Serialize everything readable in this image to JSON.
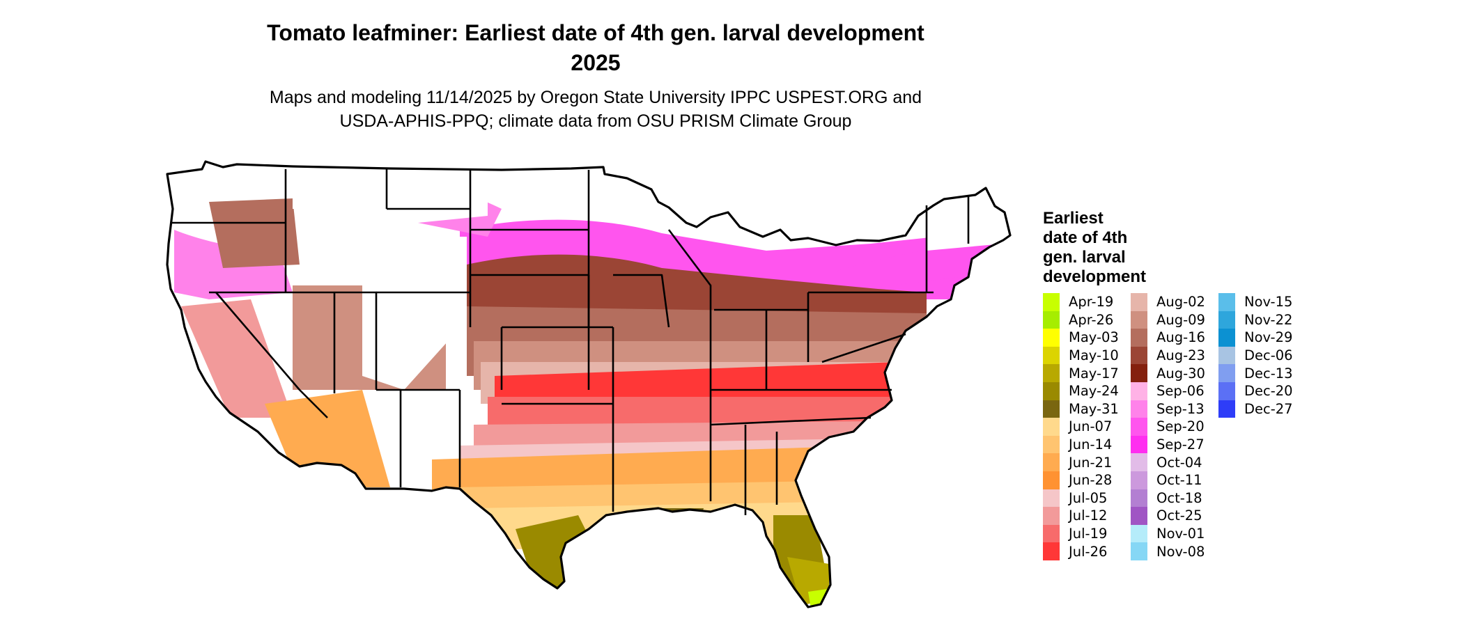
{
  "title": {
    "line1": "Tomato leafminer: Earliest date of 4th gen. larval development",
    "line2": "2025"
  },
  "subtitle": {
    "line1": "Maps and modeling 11/14/2025 by Oregon State University IPPC USPEST.ORG and",
    "line2": "USDA-APHIS-PPQ; climate data from OSU PRISM Climate Group"
  },
  "legend": {
    "title_lines": [
      "Earliest",
      "date of 4th",
      "gen. larval",
      "development"
    ],
    "columns": [
      [
        {
          "label": "Apr-19",
          "color": "#c8ff00"
        },
        {
          "label": "Apr-26",
          "color": "#a6ed00"
        },
        {
          "label": "May-03",
          "color": "#ffff00"
        },
        {
          "label": "May-10",
          "color": "#dcd400"
        },
        {
          "label": "May-17",
          "color": "#b8a900"
        },
        {
          "label": "May-24",
          "color": "#9a8a00"
        },
        {
          "label": "May-31",
          "color": "#7a6610"
        },
        {
          "label": "Jun-07",
          "color": "#ffd98c"
        },
        {
          "label": "Jun-14",
          "color": "#ffc470"
        },
        {
          "label": "Jun-21",
          "color": "#ffab50"
        },
        {
          "label": "Jun-28",
          "color": "#ff9232"
        },
        {
          "label": "Jul-05",
          "color": "#f5c6c8"
        },
        {
          "label": "Jul-12",
          "color": "#f29a9a"
        },
        {
          "label": "Jul-19",
          "color": "#f76b6b"
        },
        {
          "label": "Jul-26",
          "color": "#ff3737"
        }
      ],
      [
        {
          "label": "Aug-02",
          "color": "#e6b5aa"
        },
        {
          "label": "Aug-09",
          "color": "#cf9080"
        },
        {
          "label": "Aug-16",
          "color": "#b46e5e"
        },
        {
          "label": "Aug-23",
          "color": "#9b4535"
        },
        {
          "label": "Aug-30",
          "color": "#84200e"
        },
        {
          "label": "Sep-06",
          "color": "#ffb2e6"
        },
        {
          "label": "Sep-13",
          "color": "#ff82ea"
        },
        {
          "label": "Sep-20",
          "color": "#ff55ee"
        },
        {
          "label": "Sep-27",
          "color": "#ff2ef0"
        },
        {
          "label": "Oct-04",
          "color": "#e2bce8"
        },
        {
          "label": "Oct-11",
          "color": "#cc99dd"
        },
        {
          "label": "Oct-18",
          "color": "#b37fd2"
        },
        {
          "label": "Oct-25",
          "color": "#a055c4"
        },
        {
          "label": "Nov-01",
          "color": "#b5ecfa"
        },
        {
          "label": "Nov-08",
          "color": "#86d7f5"
        }
      ],
      [
        {
          "label": "Nov-15",
          "color": "#5abeea"
        },
        {
          "label": "Nov-22",
          "color": "#2ea6dc"
        },
        {
          "label": "Nov-29",
          "color": "#0c91d2"
        },
        {
          "label": "Dec-06",
          "color": "#a8c4e3"
        },
        {
          "label": "Dec-13",
          "color": "#809ef0"
        },
        {
          "label": "Dec-20",
          "color": "#5b70f5"
        },
        {
          "label": "Dec-27",
          "color": "#2e3df8"
        }
      ]
    ]
  },
  "map": {
    "colors": {
      "none": "#ffffff",
      "north_band": "#ff55ee",
      "north_edge": "#ff82ea",
      "aug_dark": "#9b4535",
      "aug_mid": "#b46e5e",
      "aug_light": "#cf9080",
      "aug_pale": "#e6b5aa",
      "jul_pale": "#f5c6c8",
      "jul_light": "#f29a9a",
      "jul_mid": "#f76b6b",
      "jul_red": "#ff3737",
      "jun_pale": "#ffd98c",
      "jun_light": "#ffc470",
      "jun_mid": "#ffab50",
      "may_olive": "#9a8a00",
      "may_dark": "#7a6610",
      "may_yellow": "#b8a900",
      "apr": "#c8ff00",
      "border": "#000000"
    }
  }
}
